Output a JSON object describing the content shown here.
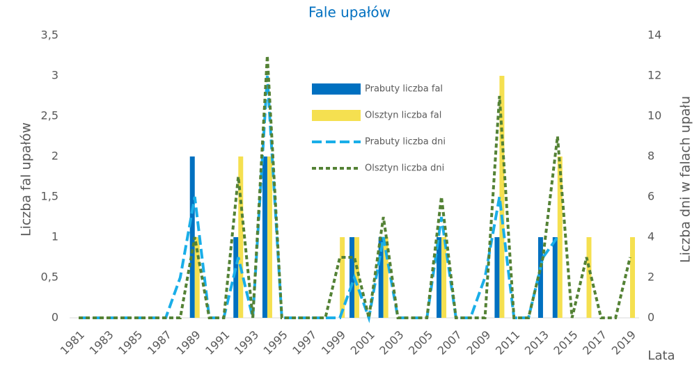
{
  "chart_data": {
    "type": "bar",
    "title": "Fale upałów",
    "y_label": "Liczba fal upałów",
    "y2_label": "Liczba dni w falach upału",
    "x_label": "Lata",
    "categories": [
      "1981",
      null,
      "1983",
      null,
      "1985",
      null,
      "1987",
      null,
      "1989",
      null,
      "1991",
      null,
      "1993",
      null,
      "1995",
      null,
      "1997",
      null,
      "1999",
      null,
      "2001",
      null,
      "2003",
      null,
      "2005",
      null,
      "2007",
      null,
      "2009",
      null,
      "2011",
      null,
      "2013",
      null,
      "2015",
      null,
      "2017",
      null,
      "2019"
    ],
    "ylim": [
      0,
      3.5
    ],
    "yticks": [
      0,
      {
        "value": 0.5,
        "label": "0,5"
      },
      1,
      {
        "value": 1.5,
        "label": "1,5"
      },
      2,
      {
        "value": 2.5,
        "label": "2,5"
      },
      3,
      {
        "value": 3.5,
        "label": "3,5"
      }
    ],
    "y2lim": [
      0,
      14
    ],
    "y2ticks": [
      0,
      2,
      4,
      6,
      8,
      10,
      12,
      14
    ],
    "series": [
      {
        "name": "Prabuty liczba fal",
        "type": "bar",
        "color": "#0070c0",
        "values": [
          0,
          0,
          0,
          0,
          0,
          0,
          0,
          0,
          2,
          0,
          0,
          1,
          0,
          2,
          0,
          0,
          0,
          0,
          0,
          1,
          0,
          1,
          0,
          0,
          0,
          1,
          0,
          0,
          0,
          1,
          0,
          0,
          1,
          1,
          0,
          0,
          0,
          0,
          0
        ]
      },
      {
        "name": "Olsztyn liczba fal",
        "type": "bar",
        "color": "#f5e050",
        "values": [
          0,
          0,
          0,
          0,
          0,
          0,
          0,
          0,
          1,
          0,
          0,
          2,
          0,
          2,
          0,
          0,
          0,
          0,
          1,
          1,
          0,
          1,
          0,
          0,
          0,
          1,
          0,
          0,
          0,
          3,
          0,
          0,
          0,
          2,
          0,
          1,
          0,
          0,
          1
        ]
      },
      {
        "name": "Prabuty liczba dni",
        "type": "line",
        "axis": "y2",
        "color": "#1aaee8",
        "dash": "14 6",
        "values": [
          0,
          0,
          0,
          0,
          0,
          0,
          0,
          2,
          6,
          0,
          0,
          3,
          0,
          12,
          0,
          0,
          0,
          0,
          0,
          2,
          0,
          4,
          0,
          0,
          0,
          5,
          0,
          0,
          2,
          6,
          0,
          0,
          3,
          4,
          null,
          null,
          null,
          null,
          null
        ]
      },
      {
        "name": "Olsztyn liczba dni",
        "type": "line",
        "axis": "y2",
        "color": "#548235",
        "dash": "6 4",
        "values": [
          0,
          0,
          0,
          0,
          0,
          0,
          0,
          0,
          4,
          0,
          0,
          7,
          0,
          13,
          0,
          0,
          0,
          0,
          3,
          3,
          0,
          5,
          0,
          0,
          0,
          6,
          0,
          0,
          0,
          11,
          0,
          0,
          3,
          9,
          0,
          3,
          0,
          0,
          3
        ]
      }
    ]
  }
}
